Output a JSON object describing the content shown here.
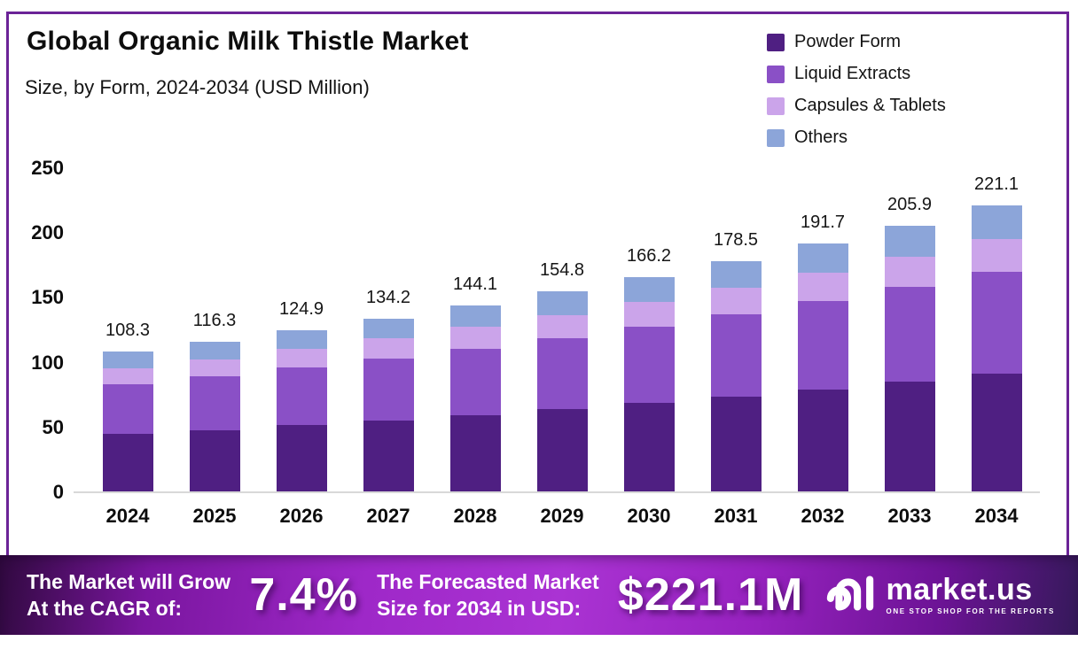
{
  "header": {
    "title": "Global Organic Milk Thistle Market",
    "subtitle": "Size, by Form, 2024-2034 (USD Million)"
  },
  "colors": {
    "frame_border": "#6B2397",
    "baseline": "#d8d8d8",
    "banner_center": "#aa33d3",
    "banner_edge": "#30093f",
    "text": "#0d0d0d",
    "banner_text": "#ffffff"
  },
  "chart_data": {
    "type": "bar",
    "stacked": true,
    "title": "Global Organic Milk Thistle Market Size, by Form, 2024-2034 (USD Million)",
    "xlabel": "",
    "ylabel": "",
    "ylim": [
      0,
      250
    ],
    "yticks": [
      0,
      50,
      100,
      150,
      200,
      250
    ],
    "grid": false,
    "legend_position": "top-right",
    "categories": [
      "2024",
      "2025",
      "2026",
      "2027",
      "2028",
      "2029",
      "2030",
      "2031",
      "2032",
      "2033",
      "2034"
    ],
    "totals": [
      108.3,
      116.3,
      124.9,
      134.2,
      144.1,
      154.8,
      166.2,
      178.5,
      191.7,
      205.9,
      221.1
    ],
    "series": [
      {
        "name": "Powder Form",
        "color": "#4F1F82",
        "values": [
          44.8,
          48.1,
          51.7,
          55.6,
          59.7,
          64.1,
          68.8,
          73.9,
          79.4,
          85.2,
          91.5
        ]
      },
      {
        "name": "Liquid Extracts",
        "color": "#8A50C6",
        "values": [
          38.4,
          41.3,
          44.3,
          47.6,
          51.2,
          54.9,
          59.0,
          63.4,
          68.1,
          73.1,
          78.5
        ]
      },
      {
        "name": "Capsules & Tablets",
        "color": "#CBA4EA",
        "values": [
          12.5,
          13.4,
          14.4,
          15.4,
          16.6,
          17.8,
          19.1,
          20.5,
          22.0,
          23.7,
          25.4
        ]
      },
      {
        "name": "Others",
        "color": "#8CA5D9",
        "values": [
          12.6,
          13.5,
          14.5,
          15.6,
          16.6,
          18.0,
          19.3,
          20.7,
          22.2,
          23.9,
          25.7
        ]
      }
    ]
  },
  "banner": {
    "cagr": {
      "line1": "The Market will Grow",
      "line2": "At the CAGR of:",
      "value": "7.4%"
    },
    "forecast": {
      "line1": "The Forecasted Market",
      "line2": "Size for 2034 in USD:",
      "value": "$221.1M"
    },
    "logo": {
      "name": "market.us",
      "tagline": "ONE STOP SHOP FOR THE REPORTS"
    }
  }
}
